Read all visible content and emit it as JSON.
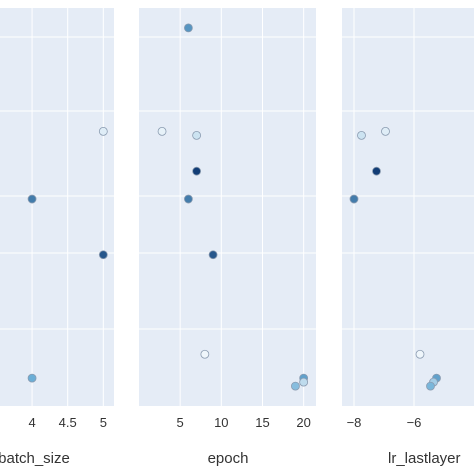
{
  "chart_data": [
    {
      "type": "scatter",
      "xlabel": "batch_size",
      "xlim": [
        3.55,
        5.15
      ],
      "ylim": [
        0,
        1
      ],
      "xticks": [
        4,
        4.5,
        5
      ],
      "xtick_labels": [
        "4",
        "4.5",
        "5"
      ],
      "points": [
        {
          "x": 4,
          "y": 0.52,
          "c": 0.7
        },
        {
          "x": 5,
          "y": 0.69,
          "c": 0.08
        },
        {
          "x": 5,
          "y": 0.38,
          "c": 0.85
        },
        {
          "x": 4,
          "y": 0.07,
          "c": 0.5
        }
      ]
    },
    {
      "type": "scatter",
      "xlabel": "epoch",
      "xlim": [
        0,
        21.5
      ],
      "ylim": [
        0,
        1
      ],
      "xticks": [
        5,
        10,
        15,
        20
      ],
      "xtick_labels": [
        "5",
        "10",
        "15",
        "20"
      ],
      "points": [
        {
          "x": 6,
          "y": 0.95,
          "c": 0.6
        },
        {
          "x": 2.8,
          "y": 0.69,
          "c": 0.05
        },
        {
          "x": 7,
          "y": 0.68,
          "c": 0.15
        },
        {
          "x": 7,
          "y": 0.59,
          "c": 0.95
        },
        {
          "x": 6,
          "y": 0.52,
          "c": 0.7
        },
        {
          "x": 9,
          "y": 0.38,
          "c": 0.85
        },
        {
          "x": 8,
          "y": 0.13,
          "c": 0.02
        },
        {
          "x": 20,
          "y": 0.07,
          "c": 0.55
        },
        {
          "x": 20,
          "y": 0.06,
          "c": 0.2
        },
        {
          "x": 19,
          "y": 0.05,
          "c": 0.4
        }
      ]
    },
    {
      "type": "scatter",
      "xlabel": "lr_lastlayer",
      "xlim": [
        -8.4,
        -4.0
      ],
      "ylim": [
        0,
        1
      ],
      "xticks": [
        -8,
        -6
      ],
      "xtick_labels": [
        "−8",
        "−6"
      ],
      "points": [
        {
          "x": -7.75,
          "y": 0.68,
          "c": 0.15
        },
        {
          "x": -6.95,
          "y": 0.69,
          "c": 0.08
        },
        {
          "x": -7.25,
          "y": 0.59,
          "c": 0.95
        },
        {
          "x": -8.0,
          "y": 0.52,
          "c": 0.7
        },
        {
          "x": -5.8,
          "y": 0.13,
          "c": 0.02
        },
        {
          "x": -5.25,
          "y": 0.07,
          "c": 0.55
        },
        {
          "x": -5.35,
          "y": 0.06,
          "c": 0.3
        },
        {
          "x": -5.45,
          "y": 0.05,
          "c": 0.45
        }
      ]
    }
  ],
  "colors": {
    "panel_bg": "#e5ecf6",
    "grid": "#ffffff",
    "marker_light": "#f5f9fd",
    "marker_dark": "#08306b",
    "marker_edge": "#8a9bb0"
  }
}
